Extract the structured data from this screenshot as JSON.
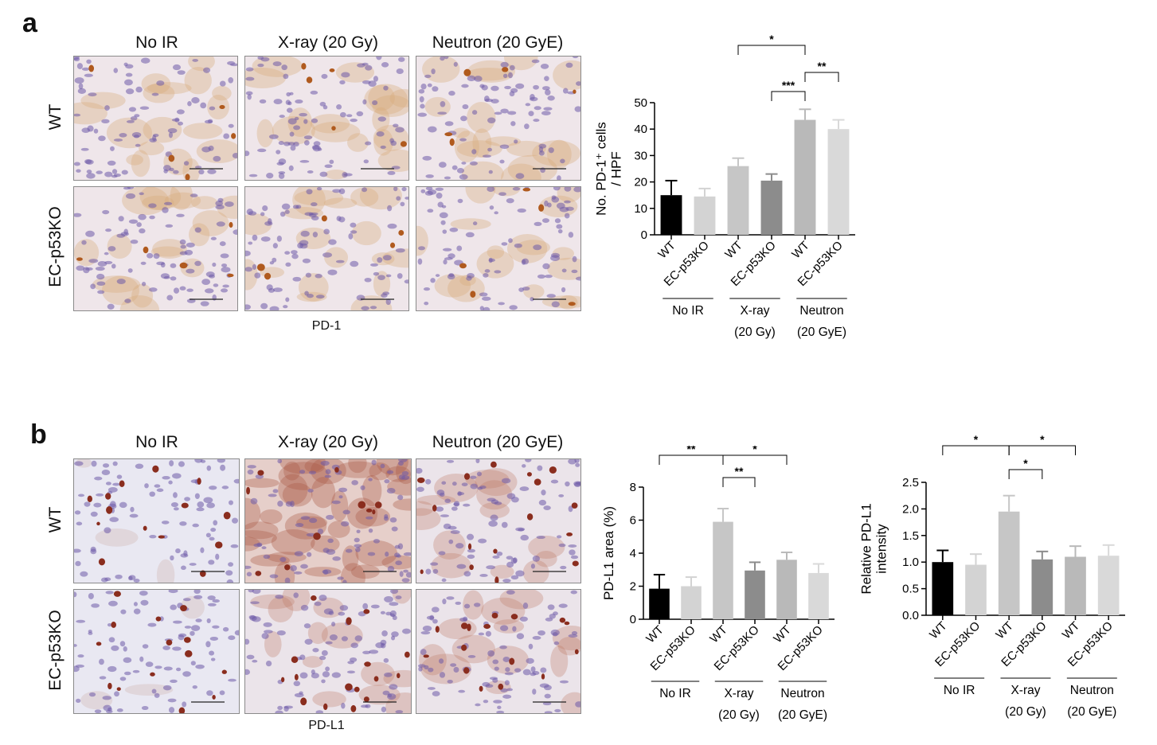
{
  "panel_a": {
    "letter": "a",
    "columns": [
      "No IR",
      "X-ray (20 Gy)",
      "Neutron (20 GyE)"
    ],
    "rows": [
      "WT",
      "EC-p53KO"
    ],
    "stain": "PD-1"
  },
  "panel_b": {
    "letter": "b",
    "columns": [
      "No IR",
      "X-ray (20 Gy)",
      "Neutron (20 GyE)"
    ],
    "rows": [
      "WT",
      "EC-p53KO"
    ],
    "stain": "PD-L1"
  },
  "colors": {
    "WT_noIR": "#000000",
    "KO_noIR": "#d3d3d3",
    "WT_xray": "#c6c6c6",
    "KO_xray": "#8c8c8c",
    "WT_neutron": "#b9b9b9",
    "KO_neutron": "#d9d9d9",
    "stain_pd1": "#b05a1e",
    "stain_pdl1": "#a8583f",
    "nuclei": "#6e5aa8"
  },
  "chart_data": [
    {
      "type": "bar",
      "ylabel_lines": [
        "No. PD-1⁺ cells",
        "/ HPF"
      ],
      "ylim": [
        0,
        50
      ],
      "yticks": [
        "0",
        "10",
        "20",
        "30",
        "40",
        "50"
      ],
      "categories": [
        "WT",
        "EC-p53KO",
        "WT",
        "EC-p53KO",
        "WT",
        "EC-p53KO"
      ],
      "values": [
        15,
        14.5,
        26,
        20.5,
        43.5,
        40
      ],
      "errors": [
        5.5,
        3,
        3,
        2.5,
        4,
        3.5
      ],
      "groups": [
        {
          "lines": [
            "No IR"
          ]
        },
        {
          "lines": [
            "X-ray",
            "(20 Gy)"
          ]
        },
        {
          "lines": [
            "Neutron",
            "(20 GyE)"
          ]
        }
      ],
      "significance": [
        {
          "from": 2,
          "to": 4,
          "label": "*"
        },
        {
          "from": 4,
          "to": 5,
          "label": "**"
        },
        {
          "from": 3,
          "to": 4,
          "label": "***"
        }
      ]
    },
    {
      "type": "bar",
      "ylabel_lines": [
        "PD-L1 area (%)"
      ],
      "ylim": [
        0,
        8
      ],
      "yticks": [
        "0",
        "2",
        "4",
        "6",
        "8"
      ],
      "categories": [
        "WT",
        "EC-p53KO",
        "WT",
        "EC-p53KO",
        "WT",
        "EC-p53KO"
      ],
      "values": [
        1.85,
        2.0,
        5.9,
        2.95,
        3.6,
        2.8
      ],
      "errors": [
        0.85,
        0.55,
        0.8,
        0.5,
        0.45,
        0.55
      ],
      "groups": [
        {
          "lines": [
            "No IR"
          ]
        },
        {
          "lines": [
            "X-ray",
            "(20 Gy)"
          ]
        },
        {
          "lines": [
            "Neutron",
            "(20 GyE)"
          ]
        }
      ],
      "significance": [
        {
          "from": 0,
          "to": 2,
          "label": "**"
        },
        {
          "from": 2,
          "to": 4,
          "label": "*"
        },
        {
          "from": 2,
          "to": 3,
          "label": "**"
        }
      ]
    },
    {
      "type": "bar",
      "ylabel_lines": [
        "Relative PD-L1",
        "intensity"
      ],
      "ylim": [
        0,
        2.5
      ],
      "yticks": [
        "0.0",
        "0.5",
        "1.0",
        "1.5",
        "2.0",
        "2.5"
      ],
      "categories": [
        "WT",
        "EC-p53KO",
        "WT",
        "EC-p53KO",
        "WT",
        "EC-p53KO"
      ],
      "values": [
        1.0,
        0.95,
        1.95,
        1.05,
        1.1,
        1.12
      ],
      "errors": [
        0.22,
        0.2,
        0.3,
        0.15,
        0.2,
        0.2
      ],
      "groups": [
        {
          "lines": [
            "No IR"
          ]
        },
        {
          "lines": [
            "X-ray",
            "(20 Gy)"
          ]
        },
        {
          "lines": [
            "Neutron",
            "(20 GyE)"
          ]
        }
      ],
      "significance": [
        {
          "from": 0,
          "to": 2,
          "label": "*"
        },
        {
          "from": 2,
          "to": 4,
          "label": "*"
        },
        {
          "from": 2,
          "to": 3,
          "label": "*"
        }
      ]
    }
  ]
}
